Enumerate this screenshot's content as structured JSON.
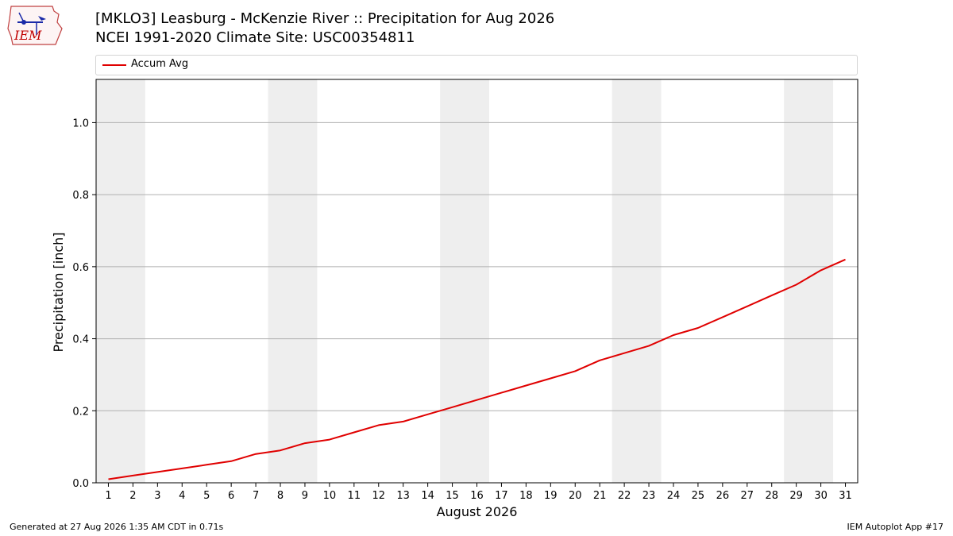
{
  "header": {
    "title": "[MKLO3] Leasburg - McKenzie River :: Precipitation for Aug 2026",
    "subtitle": "NCEI 1991-2020 Climate Site: USC00354811"
  },
  "logo": {
    "text": "IEM",
    "icon": "iem-iowa-logo-icon"
  },
  "legend": {
    "entries": [
      {
        "label": "Accum Avg",
        "color": "#e00000"
      }
    ]
  },
  "colors": {
    "line": "#e00000",
    "weekend_band": "#eeeeee",
    "grid": "#b0b0b0"
  },
  "chart_data": {
    "type": "line",
    "title": "[MKLO3] Leasburg - McKenzie River :: Precipitation for Aug 2026",
    "subtitle": "NCEI 1991-2020 Climate Site: USC00354811",
    "xlabel": "August 2026",
    "ylabel": "Precipitation [inch]",
    "xlim": [
      0.5,
      31.5
    ],
    "ylim": [
      0,
      1.12
    ],
    "x_ticks": [
      1,
      2,
      3,
      4,
      5,
      6,
      7,
      8,
      9,
      10,
      11,
      12,
      13,
      14,
      15,
      16,
      17,
      18,
      19,
      20,
      21,
      22,
      23,
      24,
      25,
      26,
      27,
      28,
      29,
      30,
      31
    ],
    "y_ticks": [
      0.0,
      0.2,
      0.4,
      0.6,
      0.8,
      1.0
    ],
    "y_tick_labels": [
      "0.0",
      "0.2",
      "0.4",
      "0.6",
      "0.8",
      "1.0"
    ],
    "grid": "horizontal",
    "legend_position": "top",
    "weekend_bands": [
      [
        0.5,
        2.5
      ],
      [
        7.5,
        9.5
      ],
      [
        14.5,
        16.5
      ],
      [
        21.5,
        23.5
      ],
      [
        28.5,
        30.5
      ]
    ],
    "series": [
      {
        "name": "Accum Avg",
        "color": "#e00000",
        "x": [
          1,
          2,
          3,
          4,
          5,
          6,
          7,
          8,
          9,
          10,
          11,
          12,
          13,
          14,
          15,
          16,
          17,
          18,
          19,
          20,
          21,
          22,
          23,
          24,
          25,
          26,
          27,
          28,
          29,
          30,
          31
        ],
        "values": [
          0.01,
          0.02,
          0.03,
          0.04,
          0.05,
          0.06,
          0.08,
          0.09,
          0.11,
          0.12,
          0.14,
          0.16,
          0.17,
          0.19,
          0.21,
          0.23,
          0.25,
          0.27,
          0.29,
          0.31,
          0.34,
          0.36,
          0.38,
          0.41,
          0.43,
          0.46,
          0.49,
          0.52,
          0.55,
          0.59,
          0.62
        ]
      }
    ]
  },
  "footer": {
    "left": "Generated at 27 Aug 2026 1:35 AM CDT in 0.71s",
    "right": "IEM Autoplot App #17"
  }
}
